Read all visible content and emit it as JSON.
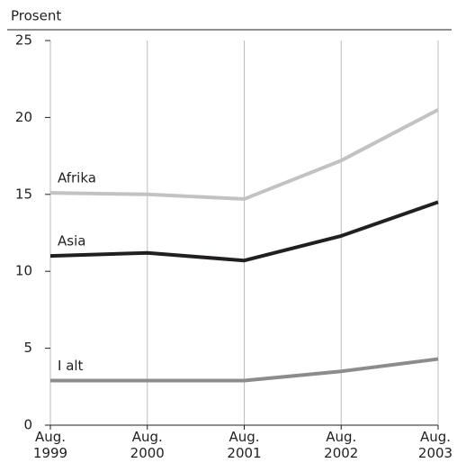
{
  "chart_data": {
    "type": "line",
    "y_label": "Prosent",
    "categories": [
      "Aug. 1999",
      "Aug. 2000",
      "Aug. 2001",
      "Aug. 2002",
      "Aug. 2003"
    ],
    "series": [
      {
        "name": "Afrika",
        "color": "#c2c2c2",
        "values": [
          15.1,
          15.0,
          14.7,
          17.2,
          20.5
        ]
      },
      {
        "name": "Asia",
        "color": "#231f20",
        "values": [
          11.0,
          11.2,
          10.7,
          12.3,
          14.5
        ]
      },
      {
        "name": "I alt",
        "color": "#8c8c8c",
        "values": [
          2.9,
          2.9,
          2.9,
          3.5,
          4.3
        ]
      }
    ],
    "ylim": [
      0,
      25
    ],
    "yticks": [
      0,
      5,
      10,
      15,
      20,
      25
    ],
    "grid": true
  }
}
